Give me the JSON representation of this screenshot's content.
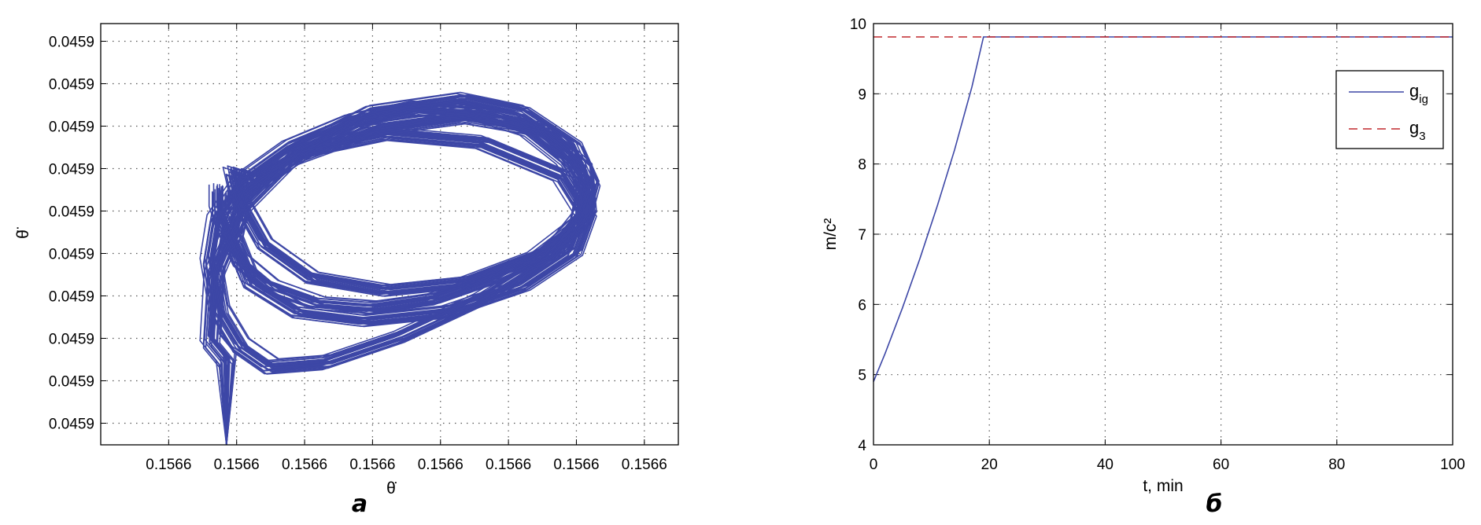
{
  "chart_data": [
    {
      "type": "line",
      "panel_label": "а",
      "xlabel": "θ̇",
      "ylabel": "θ̈",
      "x_ticks": [
        "0.1566",
        "0.1566",
        "0.1566",
        "0.1566",
        "0.1566",
        "0.1566",
        "0.1566",
        "0.1566"
      ],
      "y_ticks": [
        "0.0459",
        "0.0459",
        "0.0459",
        "0.0459",
        "0.0459",
        "0.0459",
        "0.0459",
        "0.0459",
        "0.0459",
        "0.0459"
      ],
      "grid": true,
      "colors": {
        "trajectory": "#3d47a6"
      },
      "series": [
        {
          "x": [
            1.85,
            1.85,
            1.62,
            1.68,
            2.1,
            2.9,
            4.0,
            5.3,
            6.2,
            6.95,
            7.2,
            7.05,
            6.4,
            5.4,
            4.2,
            3.1,
            2.4,
            2.05,
            1.95,
            2.3,
            3.0,
            4.2,
            5.6,
            6.8,
            7.15,
            6.95,
            6.2,
            5.1,
            3.9,
            2.9,
            2.2,
            1.95,
            2.1,
            2.8,
            4.0,
            5.4,
            6.5,
            7.1,
            7.15,
            6.6,
            5.6,
            4.4,
            3.3,
            2.5,
            2.05,
            1.75,
            1.62,
            1.72,
            2.1,
            2.8,
            3.7,
            4.6,
            5.5,
            6.3,
            6.85,
            7.15,
            7.05,
            6.6,
            5.8,
            4.9,
            4.0,
            3.2,
            2.5,
            2.05,
            1.85,
            1.75,
            1.75
          ],
          "y": [
            -0.15,
            1.85,
            2.3,
            3.9,
            5.5,
            6.8,
            7.7,
            8.0,
            7.7,
            6.9,
            6.0,
            5.1,
            4.3,
            3.7,
            3.5,
            3.8,
            4.6,
            5.6,
            6.3,
            6.1,
            6.8,
            7.2,
            7.0,
            6.2,
            5.3,
            4.4,
            3.6,
            3.0,
            2.8,
            3.0,
            3.7,
            4.7,
            5.8,
            6.6,
            7.3,
            7.6,
            7.3,
            6.4,
            5.4,
            4.3,
            3.3,
            2.4,
            1.8,
            1.7,
            2.2,
            3.0,
            4.2,
            5.2,
            6.1,
            6.9,
            7.5,
            7.8,
            7.7,
            7.3,
            6.6,
            5.9,
            5.1,
            4.4,
            3.8,
            3.3,
            3.1,
            3.2,
            3.6,
            4.2,
            4.9,
            5.4,
            5.9
          ]
        }
      ]
    },
    {
      "type": "line",
      "panel_label": "б",
      "xlabel": "t, min",
      "ylabel": "m/c²",
      "xlim": [
        0,
        100
      ],
      "ylim": [
        4,
        10
      ],
      "x_ticks": [
        "0",
        "20",
        "40",
        "60",
        "80",
        "100"
      ],
      "y_ticks": [
        "4",
        "5",
        "6",
        "7",
        "8",
        "9",
        "10"
      ],
      "grid": true,
      "legend_position": "top-right",
      "colors": {
        "g_ig": "#3d47a6",
        "g_3": "#c0282d"
      },
      "legend": [
        {
          "base": "g",
          "sub": "ig"
        },
        {
          "base": "g",
          "sub": "3"
        }
      ],
      "series": [
        {
          "name": "g_ig",
          "x": [
            0,
            2,
            5,
            8,
            11,
            14,
            17,
            19,
            100
          ],
          "y": [
            4.9,
            5.3,
            5.95,
            6.65,
            7.4,
            8.2,
            9.1,
            9.81,
            9.81
          ]
        },
        {
          "name": "g_3",
          "x": [
            0,
            100
          ],
          "y": [
            9.81,
            9.81
          ]
        }
      ]
    }
  ]
}
